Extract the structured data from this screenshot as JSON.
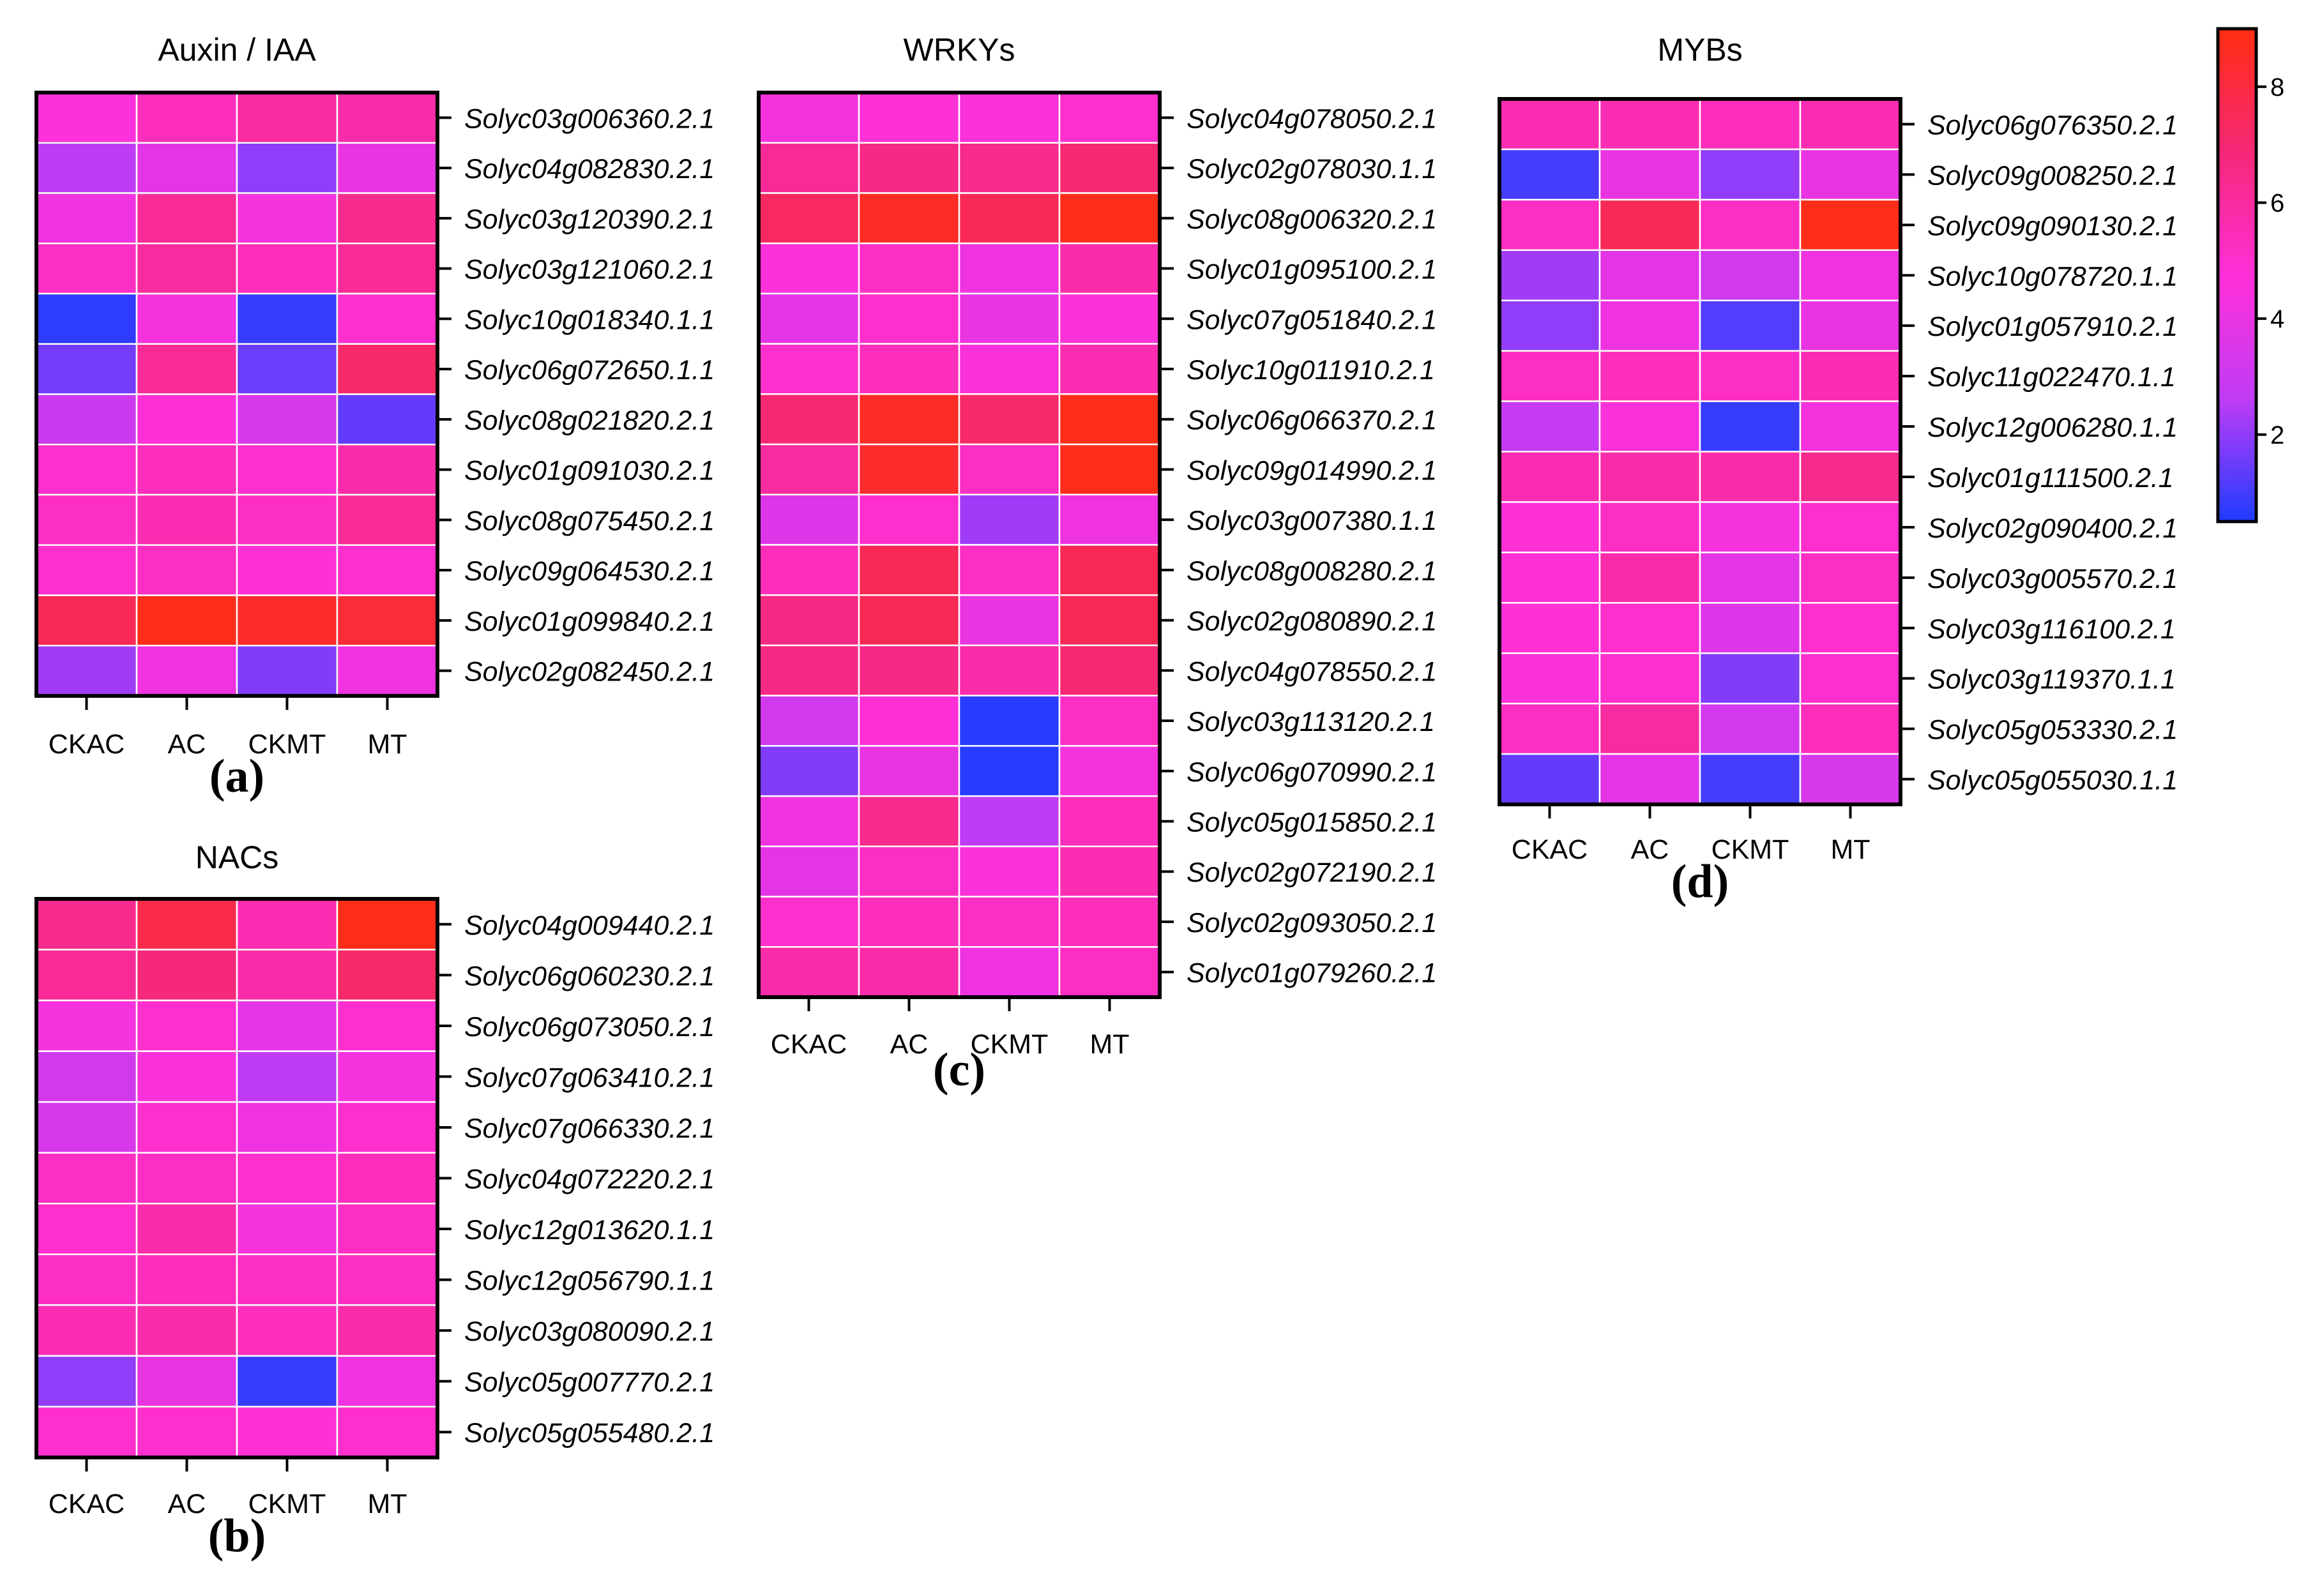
{
  "figure": {
    "columns": [
      "CKAC",
      "AC",
      "CKMT",
      "MT"
    ],
    "colorbar": {
      "min": 0.5,
      "max": 9,
      "ticks": [
        2,
        4,
        6,
        8
      ],
      "colors": [
        "#1f3cff",
        "#c03cf5",
        "#ff30d8",
        "#f52878",
        "#ff2d10"
      ]
    }
  },
  "chart_data": [
    {
      "type": "heatmap",
      "panel": "(a)",
      "title": "Auxin / IAA",
      "columns": [
        "CKAC",
        "AC",
        "CKMT",
        "MT"
      ],
      "rows": [
        "Solyc03g006360.2.1",
        "Solyc04g082830.2.1",
        "Solyc03g120390.2.1",
        "Solyc03g121060.2.1",
        "Solyc10g018340.1.1",
        "Solyc06g072650.1.1",
        "Solyc08g021820.2.1",
        "Solyc01g091030.2.1",
        "Solyc08g075450.2.1",
        "Solyc09g064530.2.1",
        "Solyc01g099840.2.1",
        "Solyc02g082450.2.1"
      ],
      "values": [
        [
          4.6,
          5.4,
          6.0,
          5.8
        ],
        [
          2.6,
          3.8,
          2.0,
          4.0
        ],
        [
          4.2,
          6.2,
          4.3,
          6.4
        ],
        [
          5.2,
          6.0,
          5.4,
          6.2
        ],
        [
          0.7,
          4.4,
          0.8,
          5.0
        ],
        [
          1.6,
          6.2,
          1.5,
          7.2
        ],
        [
          3.0,
          4.8,
          3.4,
          1.4
        ],
        [
          5.0,
          5.4,
          5.0,
          5.8
        ],
        [
          5.2,
          5.6,
          5.2,
          6.2
        ],
        [
          5.0,
          5.2,
          4.8,
          5.0
        ],
        [
          7.6,
          8.8,
          8.4,
          8.2
        ],
        [
          2.2,
          4.2,
          1.8,
          4.2
        ]
      ]
    },
    {
      "type": "heatmap",
      "panel": "(b)",
      "title": "NACs",
      "columns": [
        "CKAC",
        "AC",
        "CKMT",
        "MT"
      ],
      "rows": [
        "Solyc04g009440.2.1",
        "Solyc06g060230.2.1",
        "Solyc06g073050.2.1",
        "Solyc07g063410.2.1",
        "Solyc07g066330.2.1",
        "Solyc04g072220.2.1",
        "Solyc12g013620.1.1",
        "Solyc12g056790.1.1",
        "Solyc03g080090.2.1",
        "Solyc05g007770.2.1",
        "Solyc05g055480.2.1"
      ],
      "values": [
        [
          6.4,
          7.8,
          5.6,
          8.8
        ],
        [
          6.2,
          6.8,
          5.8,
          7.2
        ],
        [
          4.4,
          5.0,
          3.8,
          5.0
        ],
        [
          3.2,
          4.6,
          2.6,
          4.4
        ],
        [
          3.4,
          5.0,
          4.2,
          5.0
        ],
        [
          5.2,
          5.2,
          5.0,
          5.4
        ],
        [
          5.0,
          5.8,
          4.4,
          5.2
        ],
        [
          5.2,
          5.4,
          5.2,
          5.2
        ],
        [
          5.6,
          5.8,
          5.4,
          5.8
        ],
        [
          2.0,
          4.0,
          0.8,
          4.2
        ],
        [
          5.0,
          5.0,
          4.8,
          5.0
        ]
      ]
    },
    {
      "type": "heatmap",
      "panel": "(c)",
      "title": "WRKYs",
      "columns": [
        "CKAC",
        "AC",
        "CKMT",
        "MT"
      ],
      "rows": [
        "Solyc04g078050.2.1",
        "Solyc02g078030.1.1",
        "Solyc08g006320.2.1",
        "Solyc01g095100.2.1",
        "Solyc07g051840.2.1",
        "Solyc10g011910.2.1",
        "Solyc06g066370.2.1",
        "Solyc09g014990.2.1",
        "Solyc03g007380.1.1",
        "Solyc08g008280.2.1",
        "Solyc02g080890.2.1",
        "Solyc04g078550.2.1",
        "Solyc03g113120.2.1",
        "Solyc06g070990.2.1",
        "Solyc05g015850.2.1",
        "Solyc02g072190.2.1",
        "Solyc02g093050.2.1",
        "Solyc01g079260.2.1"
      ],
      "values": [
        [
          4.4,
          4.8,
          4.6,
          5.0
        ],
        [
          6.2,
          6.6,
          6.4,
          7.0
        ],
        [
          7.4,
          8.6,
          7.6,
          8.8
        ],
        [
          4.6,
          5.2,
          4.2,
          5.8
        ],
        [
          3.8,
          5.0,
          4.0,
          4.6
        ],
        [
          5.0,
          5.4,
          4.6,
          5.6
        ],
        [
          7.0,
          8.6,
          7.2,
          8.8
        ],
        [
          6.0,
          8.4,
          5.2,
          8.8
        ],
        [
          3.6,
          5.0,
          2.2,
          4.2
        ],
        [
          5.4,
          7.6,
          5.2,
          7.6
        ],
        [
          6.6,
          7.6,
          4.0,
          7.6
        ],
        [
          6.6,
          6.6,
          5.8,
          7.0
        ],
        [
          3.2,
          4.8,
          0.6,
          5.2
        ],
        [
          1.8,
          4.0,
          0.6,
          4.4
        ],
        [
          4.2,
          6.4,
          2.6,
          5.4
        ],
        [
          3.8,
          5.2,
          4.6,
          5.6
        ],
        [
          5.0,
          5.4,
          5.2,
          5.4
        ],
        [
          5.8,
          5.8,
          4.2,
          5.2
        ]
      ]
    },
    {
      "type": "heatmap",
      "panel": "(d)",
      "title": "MYBs",
      "columns": [
        "CKAC",
        "AC",
        "CKMT",
        "MT"
      ],
      "rows": [
        "Solyc06g076350.2.1",
        "Solyc09g008250.2.1",
        "Solyc09g090130.2.1",
        "Solyc10g078720.1.1",
        "Solyc01g057910.2.1",
        "Solyc11g022470.1.1",
        "Solyc12g006280.1.1",
        "Solyc01g111500.2.1",
        "Solyc02g090400.2.1",
        "Solyc03g005570.2.1",
        "Solyc03g116100.2.1",
        "Solyc03g119370.1.1",
        "Solyc05g053330.2.1",
        "Solyc05g055030.1.1"
      ],
      "values": [
        [
          5.6,
          5.6,
          5.4,
          5.6
        ],
        [
          1.0,
          4.0,
          2.0,
          4.0
        ],
        [
          5.2,
          7.6,
          5.2,
          8.8
        ],
        [
          2.2,
          3.8,
          3.2,
          4.2
        ],
        [
          2.0,
          4.2,
          1.2,
          4.0
        ],
        [
          5.2,
          5.4,
          5.2,
          5.6
        ],
        [
          2.8,
          4.6,
          0.8,
          4.4
        ],
        [
          5.6,
          5.8,
          5.8,
          6.4
        ],
        [
          4.8,
          5.2,
          4.4,
          5.0
        ],
        [
          4.8,
          5.8,
          3.8,
          5.2
        ],
        [
          4.8,
          5.0,
          3.6,
          5.0
        ],
        [
          4.6,
          5.0,
          1.8,
          5.0
        ],
        [
          5.2,
          6.0,
          3.2,
          5.4
        ],
        [
          1.4,
          3.8,
          1.0,
          3.4
        ]
      ]
    }
  ]
}
